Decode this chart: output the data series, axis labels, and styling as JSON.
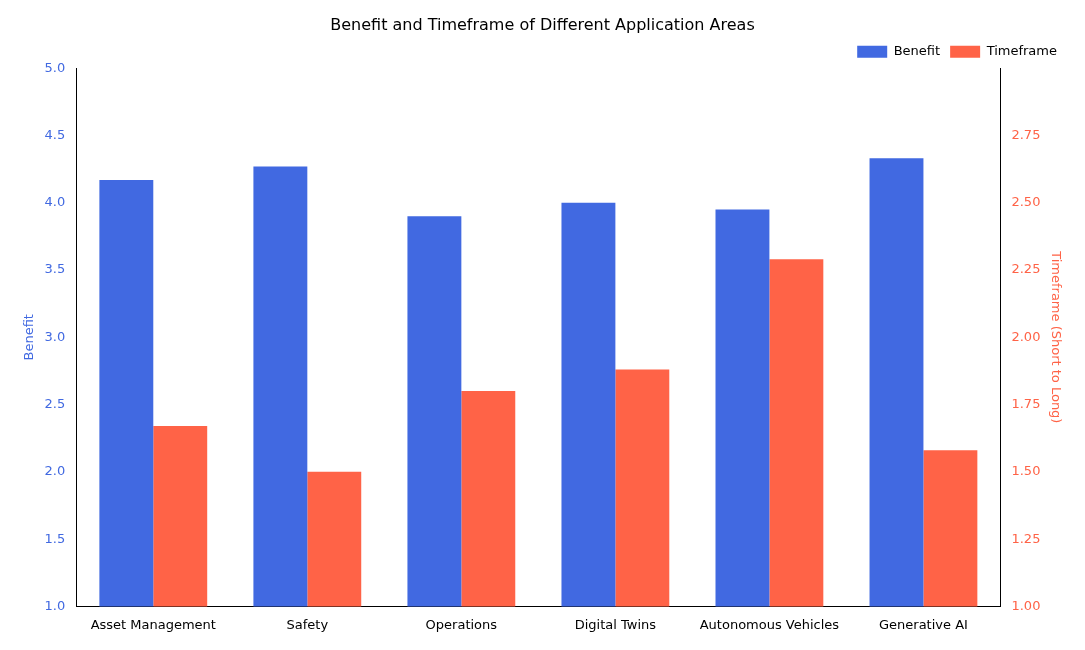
{
  "chart_data": {
    "type": "bar",
    "title": "Benefit and Timeframe of Different Application Areas",
    "ylabel": "Benefit",
    "y2label": "Timeframe (Short to Long)",
    "categories": [
      "Asset Management",
      "Safety",
      "Operations",
      "Digital Twins",
      "Autonomous Vehicles",
      "Generative AI"
    ],
    "series": [
      {
        "name": "Benefit",
        "color": "#4169e1",
        "values": [
          4.17,
          4.27,
          3.9,
          4.0,
          3.95,
          4.33
        ]
      },
      {
        "name": "Timeframe",
        "color": "#ff6347",
        "axis": "y2",
        "values": [
          1.67,
          1.5,
          1.8,
          1.88,
          2.29,
          1.58
        ]
      }
    ],
    "ylim": [
      1,
      5
    ],
    "yticks": [
      {
        "value": 1,
        "label": "1.0"
      },
      {
        "value": 1.5,
        "label": "1.5"
      },
      {
        "value": 2,
        "label": "2.0"
      },
      {
        "value": 2.5,
        "label": "2.5"
      },
      {
        "value": 3,
        "label": "3.0"
      },
      {
        "value": 3.5,
        "label": "3.5"
      },
      {
        "value": 4,
        "label": "4.0"
      },
      {
        "value": 4.5,
        "label": "4.5"
      },
      {
        "value": 5,
        "label": "5.0"
      }
    ],
    "y2lim": [
      1,
      3
    ],
    "y2ticks": [
      {
        "value": 1,
        "label": "1.00"
      },
      {
        "value": 1.25,
        "label": "1.25"
      },
      {
        "value": 1.5,
        "label": "1.50"
      },
      {
        "value": 1.75,
        "label": "1.75"
      },
      {
        "value": 2,
        "label": "2.00"
      },
      {
        "value": 2.25,
        "label": "2.25"
      },
      {
        "value": 2.5,
        "label": "2.50"
      },
      {
        "value": 2.75,
        "label": "2.75"
      }
    ],
    "legend": "top right",
    "grid": false
  }
}
